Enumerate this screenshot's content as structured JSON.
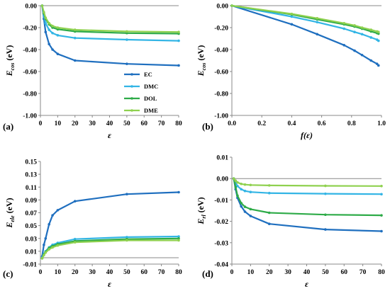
{
  "chart_data": [
    {
      "panel": "(a)",
      "type": "line",
      "xlabel": "ε",
      "ylabel": "E",
      "ylabel_sub": "cos",
      "ylabel_unit": " (eV)",
      "xlim": [
        0,
        80
      ],
      "ylim": [
        -1.0,
        0.0
      ],
      "xticks": [
        0,
        10,
        20,
        30,
        40,
        50,
        60,
        70,
        80
      ],
      "yticks": [
        0,
        -0.2,
        -0.4,
        -0.6,
        -0.8,
        -1.0
      ],
      "xtick_labels": [
        "0",
        "10",
        "20",
        "30",
        "40",
        "50",
        "60",
        "70",
        "80"
      ],
      "ytick_labels": [
        "0.00",
        "-0.20",
        "-0.40",
        "-0.60",
        "-0.80",
        "-1.00"
      ],
      "grid": false,
      "legend": true,
      "legend_position": "center-right",
      "series": [
        {
          "name": "EC",
          "color": "#1f6fbf",
          "x": [
            1,
            2,
            3,
            5,
            7,
            10,
            20,
            50,
            80
          ],
          "y": [
            -0.0,
            -0.12,
            -0.24,
            -0.35,
            -0.4,
            -0.44,
            -0.5,
            -0.53,
            -0.545
          ]
        },
        {
          "name": "DMC",
          "color": "#33b5e5",
          "x": [
            1,
            2,
            3,
            5,
            7,
            10,
            20,
            50,
            80
          ],
          "y": [
            -0.0,
            -0.09,
            -0.16,
            -0.22,
            -0.25,
            -0.27,
            -0.295,
            -0.31,
            -0.32
          ]
        },
        {
          "name": "DOL",
          "color": "#2eab48",
          "x": [
            1,
            2,
            3,
            5,
            7,
            10,
            20,
            50,
            80
          ],
          "y": [
            -0.0,
            -0.07,
            -0.12,
            -0.17,
            -0.2,
            -0.215,
            -0.235,
            -0.25,
            -0.255
          ]
        },
        {
          "name": "DME",
          "color": "#8fd14f",
          "x": [
            1,
            2,
            3,
            5,
            7,
            10,
            20,
            50,
            80
          ],
          "y": [
            -0.0,
            -0.06,
            -0.11,
            -0.16,
            -0.185,
            -0.2,
            -0.22,
            -0.235,
            -0.24
          ]
        }
      ]
    },
    {
      "panel": "(b)",
      "type": "line",
      "xlabel": "f(ε)",
      "ylabel": "E",
      "ylabel_sub": "cos",
      "ylabel_unit": " (eV)",
      "xlim": [
        0,
        1.0
      ],
      "ylim": [
        -1.0,
        0.0
      ],
      "xticks": [
        0,
        0.2,
        0.4,
        0.6,
        0.8,
        1.0
      ],
      "yticks": [
        0,
        -0.2,
        -0.4,
        -0.6,
        -0.8,
        -1.0
      ],
      "xtick_labels": [
        "0.0",
        "0.2",
        "0.4",
        "0.6",
        "0.8",
        "1.0"
      ],
      "ytick_labels": [
        "0.00",
        "-0.20",
        "-0.40",
        "-0.60",
        "-0.80",
        "-1.00"
      ],
      "grid": false,
      "legend": false,
      "series": [
        {
          "name": "EC",
          "color": "#1f6fbf",
          "x": [
            0,
            0.4,
            0.57,
            0.75,
            0.82,
            0.87,
            0.93,
            0.97,
            0.98
          ],
          "y": [
            0,
            -0.17,
            -0.26,
            -0.36,
            -0.41,
            -0.45,
            -0.5,
            -0.53,
            -0.545
          ]
        },
        {
          "name": "DMC",
          "color": "#33b5e5",
          "x": [
            0,
            0.4,
            0.57,
            0.75,
            0.82,
            0.87,
            0.93,
            0.97,
            0.98
          ],
          "y": [
            0,
            -0.1,
            -0.15,
            -0.21,
            -0.24,
            -0.26,
            -0.29,
            -0.31,
            -0.32
          ]
        },
        {
          "name": "DOL",
          "color": "#2eab48",
          "x": [
            0,
            0.4,
            0.57,
            0.75,
            0.82,
            0.87,
            0.93,
            0.97,
            0.98
          ],
          "y": [
            0,
            -0.08,
            -0.125,
            -0.17,
            -0.19,
            -0.21,
            -0.235,
            -0.25,
            -0.255
          ]
        },
        {
          "name": "DME",
          "color": "#8fd14f",
          "x": [
            0,
            0.4,
            0.57,
            0.75,
            0.82,
            0.87,
            0.93,
            0.97,
            0.98
          ],
          "y": [
            0,
            -0.075,
            -0.115,
            -0.16,
            -0.18,
            -0.2,
            -0.22,
            -0.235,
            -0.24
          ]
        }
      ]
    },
    {
      "panel": "(c)",
      "type": "line",
      "xlabel": "ε",
      "ylabel": "E",
      "ylabel_sub": "ele",
      "ylabel_unit": " (eV)",
      "xlim": [
        0,
        80
      ],
      "ylim": [
        -0.01,
        0.15
      ],
      "xticks": [
        0,
        10,
        20,
        30,
        40,
        50,
        60,
        70,
        80
      ],
      "yticks": [
        -0.01,
        0.01,
        0.03,
        0.05,
        0.07,
        0.09,
        0.11,
        0.13,
        0.15
      ],
      "xtick_labels": [
        "0",
        "10",
        "20",
        "30",
        "40",
        "50",
        "60",
        "70",
        "80"
      ],
      "ytick_labels": [
        "-0.01",
        "0.01",
        "0.03",
        "0.05",
        "0.07",
        "0.09",
        "0.11",
        "0.13",
        "0.15"
      ],
      "grid": false,
      "legend": false,
      "series": [
        {
          "name": "EC",
          "color": "#1f6fbf",
          "x": [
            1,
            2,
            3,
            5,
            7,
            10,
            20,
            50,
            80
          ],
          "y": [
            0.002,
            0.02,
            0.03,
            0.052,
            0.066,
            0.074,
            0.088,
            0.099,
            0.102
          ]
        },
        {
          "name": "DMC",
          "color": "#33b5e5",
          "x": [
            1,
            2,
            3,
            5,
            7,
            10,
            20,
            50,
            80
          ],
          "y": [
            0.0,
            0.006,
            0.01,
            0.016,
            0.02,
            0.023,
            0.029,
            0.032,
            0.033
          ]
        },
        {
          "name": "DOL",
          "color": "#2eab48",
          "x": [
            1,
            2,
            3,
            5,
            7,
            10,
            20,
            50,
            80
          ],
          "y": [
            -0.001,
            0.005,
            0.009,
            0.015,
            0.018,
            0.021,
            0.026,
            0.029,
            0.03
          ]
        },
        {
          "name": "DME",
          "color": "#8fd14f",
          "x": [
            1,
            2,
            3,
            5,
            7,
            10,
            20,
            50,
            80
          ],
          "y": [
            -0.001,
            0.004,
            0.008,
            0.013,
            0.016,
            0.019,
            0.024,
            0.027,
            0.027
          ]
        }
      ]
    },
    {
      "panel": "(d)",
      "type": "line",
      "xlabel": "ε",
      "ylabel": "E",
      "ylabel_sub": "rl",
      "ylabel_unit": " (eV)",
      "xlim": [
        0,
        80
      ],
      "ylim": [
        -0.04,
        0.01
      ],
      "xticks": [
        0,
        10,
        20,
        30,
        40,
        50,
        60,
        70,
        80
      ],
      "yticks": [
        0.01,
        0,
        -0.01,
        -0.02,
        -0.03,
        -0.04
      ],
      "xtick_labels": [
        "0",
        "10",
        "20",
        "30",
        "40",
        "50",
        "60",
        "70",
        "80"
      ],
      "ytick_labels": [
        "0.01",
        "0.00",
        "-0.01",
        "-0.02",
        "-0.03",
        "-0.04"
      ],
      "grid": false,
      "legend": false,
      "series": [
        {
          "name": "EC",
          "color": "#1f6fbf",
          "x": [
            1,
            2,
            3,
            5,
            7,
            10,
            20,
            50,
            80
          ],
          "y": [
            0.0,
            -0.005,
            -0.009,
            -0.013,
            -0.0155,
            -0.0175,
            -0.0212,
            -0.0238,
            -0.0246
          ]
        },
        {
          "name": "DMC",
          "color": "#33b5e5",
          "x": [
            1,
            2,
            3,
            5,
            7,
            10,
            20,
            50,
            80
          ],
          "y": [
            0.0,
            -0.002,
            -0.0035,
            -0.005,
            -0.0058,
            -0.0063,
            -0.0068,
            -0.0071,
            -0.0073
          ]
        },
        {
          "name": "DOL",
          "color": "#2eab48",
          "x": [
            1,
            2,
            3,
            5,
            7,
            10,
            20,
            50,
            80
          ],
          "y": [
            0.0,
            -0.004,
            -0.008,
            -0.0115,
            -0.0132,
            -0.0143,
            -0.016,
            -0.0169,
            -0.0172
          ]
        },
        {
          "name": "DME",
          "color": "#8fd14f",
          "x": [
            1,
            2,
            3,
            5,
            7,
            10,
            20,
            50,
            80
          ],
          "y": [
            0.0,
            -0.001,
            -0.0018,
            -0.0025,
            -0.0028,
            -0.003,
            -0.0032,
            -0.0034,
            -0.0035
          ]
        }
      ]
    }
  ]
}
